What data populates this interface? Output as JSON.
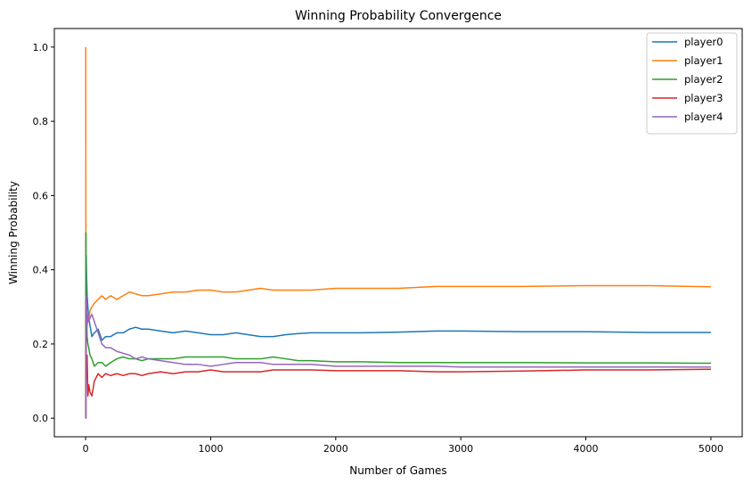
{
  "chart_data": {
    "type": "line",
    "title": "Winning Probability Convergence",
    "xlabel": "Number of Games",
    "ylabel": "Winning Probability",
    "xlim": [
      -250,
      5250
    ],
    "ylim": [
      -0.05,
      1.05
    ],
    "xticks": [
      0,
      1000,
      2000,
      3000,
      4000,
      5000
    ],
    "xtick_labels": [
      "0",
      "1000",
      "2000",
      "3000",
      "4000",
      "5000"
    ],
    "yticks": [
      0.0,
      0.2,
      0.4,
      0.6,
      0.8,
      1.0
    ],
    "ytick_labels": [
      "0.0",
      "0.2",
      "0.4",
      "0.6",
      "0.8",
      "1.0"
    ],
    "grid": false,
    "legend_position": "top-right",
    "series": [
      {
        "name": "player0",
        "color": "#1f77b4",
        "x": [
          1,
          2,
          3,
          5,
          8,
          12,
          18,
          25,
          35,
          50,
          70,
          100,
          130,
          160,
          200,
          250,
          300,
          350,
          400,
          450,
          500,
          600,
          700,
          800,
          900,
          1000,
          1100,
          1200,
          1300,
          1400,
          1500,
          1600,
          1700,
          1800,
          2000,
          2200,
          2500,
          2800,
          3000,
          3500,
          4000,
          4500,
          5000
        ],
        "y": [
          0.0,
          0.5,
          0.33,
          0.44,
          0.38,
          0.33,
          0.3,
          0.27,
          0.25,
          0.22,
          0.23,
          0.24,
          0.21,
          0.22,
          0.22,
          0.23,
          0.23,
          0.24,
          0.245,
          0.24,
          0.24,
          0.235,
          0.23,
          0.235,
          0.23,
          0.225,
          0.225,
          0.23,
          0.225,
          0.22,
          0.22,
          0.225,
          0.228,
          0.23,
          0.23,
          0.23,
          0.232,
          0.235,
          0.235,
          0.233,
          0.233,
          0.231,
          0.231
        ]
      },
      {
        "name": "player1",
        "color": "#ff7f0e",
        "x": [
          1,
          2,
          3,
          5,
          8,
          12,
          18,
          25,
          35,
          50,
          70,
          100,
          130,
          160,
          200,
          250,
          300,
          350,
          400,
          450,
          500,
          600,
          700,
          800,
          900,
          1000,
          1100,
          1200,
          1300,
          1400,
          1500,
          1600,
          1700,
          1800,
          2000,
          2200,
          2500,
          2800,
          3000,
          3500,
          4000,
          4500,
          5000
        ],
        "y": [
          1.0,
          0.5,
          0.33,
          0.25,
          0.22,
          0.25,
          0.28,
          0.26,
          0.29,
          0.3,
          0.31,
          0.32,
          0.33,
          0.32,
          0.33,
          0.32,
          0.33,
          0.34,
          0.335,
          0.33,
          0.33,
          0.335,
          0.34,
          0.34,
          0.345,
          0.345,
          0.34,
          0.34,
          0.345,
          0.35,
          0.345,
          0.345,
          0.345,
          0.345,
          0.35,
          0.35,
          0.35,
          0.355,
          0.355,
          0.355,
          0.357,
          0.357,
          0.354
        ]
      },
      {
        "name": "player2",
        "color": "#2ca02c",
        "x": [
          1,
          2,
          3,
          5,
          8,
          12,
          18,
          25,
          35,
          50,
          70,
          100,
          130,
          160,
          200,
          250,
          300,
          350,
          400,
          450,
          500,
          600,
          700,
          800,
          900,
          1000,
          1100,
          1200,
          1300,
          1400,
          1500,
          1600,
          1700,
          1800,
          2000,
          2200,
          2500,
          2800,
          3000,
          3500,
          4000,
          4500,
          5000
        ],
        "y": [
          0.0,
          0.5,
          0.33,
          0.22,
          0.25,
          0.22,
          0.2,
          0.19,
          0.17,
          0.16,
          0.14,
          0.15,
          0.15,
          0.14,
          0.15,
          0.16,
          0.165,
          0.16,
          0.16,
          0.155,
          0.16,
          0.16,
          0.16,
          0.165,
          0.165,
          0.165,
          0.165,
          0.16,
          0.16,
          0.16,
          0.165,
          0.16,
          0.155,
          0.155,
          0.152,
          0.152,
          0.15,
          0.15,
          0.15,
          0.15,
          0.149,
          0.149,
          0.148
        ]
      },
      {
        "name": "player3",
        "color": "#d62728",
        "x": [
          1,
          2,
          3,
          5,
          8,
          12,
          18,
          25,
          35,
          50,
          70,
          100,
          130,
          160,
          200,
          250,
          300,
          350,
          400,
          450,
          500,
          600,
          700,
          800,
          900,
          1000,
          1100,
          1200,
          1300,
          1400,
          1500,
          1600,
          1700,
          1800,
          2000,
          2200,
          2500,
          2800,
          3000,
          3500,
          4000,
          4500,
          5000
        ],
        "y": [
          0.0,
          0.0,
          0.33,
          0.11,
          0.13,
          0.17,
          0.06,
          0.09,
          0.07,
          0.06,
          0.1,
          0.12,
          0.11,
          0.12,
          0.115,
          0.12,
          0.115,
          0.12,
          0.12,
          0.115,
          0.12,
          0.125,
          0.12,
          0.125,
          0.125,
          0.13,
          0.125,
          0.125,
          0.125,
          0.125,
          0.13,
          0.13,
          0.13,
          0.13,
          0.128,
          0.128,
          0.128,
          0.125,
          0.125,
          0.127,
          0.13,
          0.13,
          0.132
        ]
      },
      {
        "name": "player4",
        "color": "#9467bd",
        "x": [
          1,
          2,
          3,
          5,
          8,
          12,
          18,
          25,
          35,
          50,
          70,
          100,
          130,
          160,
          200,
          250,
          300,
          350,
          400,
          450,
          500,
          600,
          700,
          800,
          900,
          1000,
          1100,
          1200,
          1300,
          1400,
          1500,
          1600,
          1700,
          1800,
          2000,
          2200,
          2500,
          2800,
          3000,
          3500,
          4000,
          4500,
          5000
        ],
        "y": [
          0.0,
          0.0,
          0.0,
          0.33,
          0.3,
          0.25,
          0.28,
          0.26,
          0.27,
          0.28,
          0.26,
          0.23,
          0.2,
          0.19,
          0.19,
          0.18,
          0.175,
          0.17,
          0.16,
          0.165,
          0.16,
          0.155,
          0.15,
          0.145,
          0.145,
          0.14,
          0.145,
          0.15,
          0.15,
          0.15,
          0.145,
          0.145,
          0.145,
          0.145,
          0.14,
          0.14,
          0.14,
          0.14,
          0.138,
          0.138,
          0.138,
          0.138,
          0.138
        ]
      }
    ]
  }
}
